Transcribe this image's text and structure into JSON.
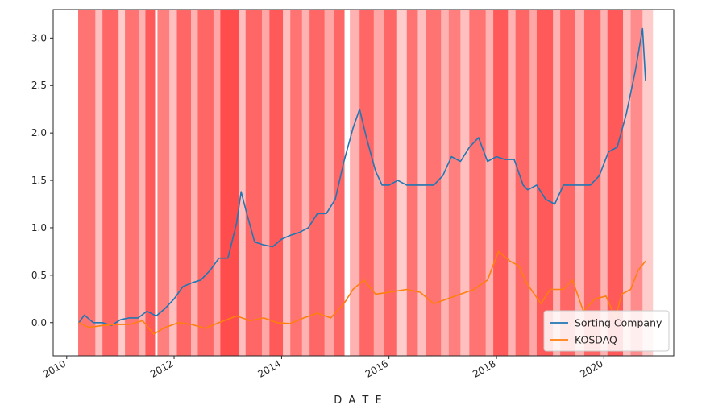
{
  "chart_data": {
    "type": "line",
    "title": "",
    "xlabel": "D A T E",
    "ylabel": "",
    "x_axis_type": "date",
    "xlim": [
      "2009-10-01",
      "2021-04-20"
    ],
    "ylim": [
      -0.35,
      3.3
    ],
    "grid": false,
    "legend_position": "bottom-right",
    "x_ticks": [
      "2010",
      "2012",
      "2014",
      "2016",
      "2018",
      "2020"
    ],
    "y_ticks": [
      "0.0",
      "0.5",
      "1.0",
      "1.5",
      "2.0",
      "2.5",
      "3.0"
    ],
    "y_tick_values": [
      0,
      0.5,
      1.0,
      1.5,
      2.0,
      2.5,
      3.0
    ],
    "background_shading": {
      "description": "vertical red bands of varying opacity",
      "color": "#ff0000",
      "bands": [
        [
          "2010-03-20",
          "2010-07-15",
          0.55
        ],
        [
          "2010-07-15",
          "2010-09-01",
          0.25
        ],
        [
          "2010-09-01",
          "2010-12-20",
          0.6
        ],
        [
          "2010-12-20",
          "2011-02-01",
          0.2
        ],
        [
          "2011-02-01",
          "2011-05-10",
          0.55
        ],
        [
          "2011-05-10",
          "2011-06-20",
          0.3
        ],
        [
          "2011-06-20",
          "2011-08-25",
          0.65
        ],
        [
          "2011-09-10",
          "2011-11-30",
          0.5
        ],
        [
          "2011-11-30",
          "2012-01-20",
          0.25
        ],
        [
          "2012-01-20",
          "2012-04-25",
          0.6
        ],
        [
          "2012-04-25",
          "2012-06-10",
          0.3
        ],
        [
          "2012-06-10",
          "2012-09-25",
          0.6
        ],
        [
          "2012-09-25",
          "2012-11-10",
          0.35
        ],
        [
          "2012-11-10",
          "2013-03-15",
          0.7
        ],
        [
          "2013-03-15",
          "2013-05-01",
          0.25
        ],
        [
          "2013-05-01",
          "2013-08-20",
          0.6
        ],
        [
          "2013-08-20",
          "2013-10-10",
          0.35
        ],
        [
          "2013-10-10",
          "2014-01-10",
          0.65
        ],
        [
          "2014-01-10",
          "2014-03-01",
          0.25
        ],
        [
          "2014-03-01",
          "2014-05-20",
          0.55
        ],
        [
          "2014-05-20",
          "2014-07-10",
          0.3
        ],
        [
          "2014-07-10",
          "2014-10-20",
          0.6
        ],
        [
          "2014-10-20",
          "2014-12-25",
          0.35
        ],
        [
          "2014-12-25",
          "2015-03-05",
          0.6
        ],
        [
          "2015-04-10",
          "2015-06-15",
          0.3
        ],
        [
          "2015-06-15",
          "2015-09-20",
          0.6
        ],
        [
          "2015-09-20",
          "2015-12-01",
          0.35
        ],
        [
          "2015-12-01",
          "2016-02-20",
          0.6
        ],
        [
          "2016-02-20",
          "2016-05-01",
          0.2
        ],
        [
          "2016-05-01",
          "2016-07-15",
          0.55
        ],
        [
          "2016-07-15",
          "2016-09-10",
          0.25
        ],
        [
          "2016-09-10",
          "2016-12-20",
          0.55
        ],
        [
          "2016-12-20",
          "2017-02-10",
          0.3
        ],
        [
          "2017-02-10",
          "2017-05-01",
          0.5
        ],
        [
          "2017-05-01",
          "2017-06-30",
          0.25
        ],
        [
          "2017-06-30",
          "2017-10-20",
          0.55
        ],
        [
          "2017-10-20",
          "2017-12-10",
          0.3
        ],
        [
          "2017-12-10",
          "2018-03-20",
          0.65
        ],
        [
          "2018-03-20",
          "2018-05-10",
          0.3
        ],
        [
          "2018-05-10",
          "2018-08-15",
          0.6
        ],
        [
          "2018-08-15",
          "2018-10-01",
          0.35
        ],
        [
          "2018-10-01",
          "2019-01-20",
          0.65
        ],
        [
          "2019-01-20",
          "2019-03-10",
          0.3
        ],
        [
          "2019-03-10",
          "2019-06-20",
          0.6
        ],
        [
          "2019-06-20",
          "2019-08-20",
          0.3
        ],
        [
          "2019-08-20",
          "2019-12-10",
          0.6
        ],
        [
          "2019-12-10",
          "2020-01-25",
          0.3
        ],
        [
          "2020-01-25",
          "2020-05-10",
          0.65
        ],
        [
          "2020-05-10",
          "2020-07-01",
          0.25
        ],
        [
          "2020-07-01",
          "2020-09-20",
          0.45
        ],
        [
          "2020-09-20",
          "2020-11-30",
          0.2
        ]
      ]
    },
    "series": [
      {
        "name": "Sorting Company",
        "color": "#1f77b4",
        "x": [
          "2010-03-25",
          "2010-05-01",
          "2010-07-01",
          "2010-09-01",
          "2010-11-01",
          "2011-01-01",
          "2011-03-01",
          "2011-05-01",
          "2011-07-01",
          "2011-09-01",
          "2011-11-01",
          "2012-01-01",
          "2012-03-01",
          "2012-05-01",
          "2012-07-01",
          "2012-09-01",
          "2012-11-01",
          "2013-01-01",
          "2013-03-01",
          "2013-04-01",
          "2013-05-01",
          "2013-07-01",
          "2013-09-01",
          "2013-11-01",
          "2014-01-01",
          "2014-03-01",
          "2014-05-01",
          "2014-07-01",
          "2014-09-01",
          "2014-11-01",
          "2015-01-01",
          "2015-03-01",
          "2015-05-01",
          "2015-06-15",
          "2015-08-01",
          "2015-10-01",
          "2015-11-15",
          "2016-01-01",
          "2016-03-01",
          "2016-05-01",
          "2016-07-01",
          "2016-09-01",
          "2016-11-01",
          "2017-01-01",
          "2017-03-01",
          "2017-05-01",
          "2017-07-01",
          "2017-09-01",
          "2017-11-01",
          "2018-01-01",
          "2018-03-01",
          "2018-05-01",
          "2018-07-01",
          "2018-08-01",
          "2018-10-01",
          "2018-12-01",
          "2019-02-01",
          "2019-04-01",
          "2019-06-01",
          "2019-08-01",
          "2019-10-01",
          "2019-12-01",
          "2020-02-01",
          "2020-04-01",
          "2020-06-01",
          "2020-08-01",
          "2020-09-20",
          "2020-10-10"
        ],
        "values": [
          0.0,
          0.08,
          0.0,
          0.0,
          -0.03,
          0.03,
          0.05,
          0.05,
          0.12,
          0.07,
          0.15,
          0.25,
          0.38,
          0.42,
          0.45,
          0.55,
          0.68,
          0.68,
          1.05,
          1.38,
          1.2,
          0.85,
          0.82,
          0.8,
          0.88,
          0.92,
          0.95,
          1.0,
          1.15,
          1.15,
          1.3,
          1.7,
          2.05,
          2.25,
          1.95,
          1.6,
          1.45,
          1.45,
          1.5,
          1.45,
          1.45,
          1.45,
          1.45,
          1.55,
          1.75,
          1.7,
          1.85,
          1.95,
          1.7,
          1.75,
          1.72,
          1.72,
          1.45,
          1.4,
          1.45,
          1.3,
          1.25,
          1.45,
          1.45,
          1.45,
          1.45,
          1.55,
          1.8,
          1.85,
          2.2,
          2.65,
          3.1,
          2.55
        ]
      },
      {
        "name": "KOSDAQ",
        "color": "#ff7f0e",
        "x": [
          "2010-03-25",
          "2010-06-01",
          "2010-09-01",
          "2010-12-01",
          "2011-03-01",
          "2011-06-01",
          "2011-08-15",
          "2011-11-01",
          "2012-02-01",
          "2012-05-01",
          "2012-08-01",
          "2012-11-01",
          "2013-03-01",
          "2013-06-01",
          "2013-09-01",
          "2013-12-01",
          "2014-03-01",
          "2014-06-01",
          "2014-09-01",
          "2014-12-01",
          "2015-03-01",
          "2015-05-01",
          "2015-07-15",
          "2015-10-01",
          "2016-01-01",
          "2016-05-01",
          "2016-08-01",
          "2016-11-01",
          "2017-02-01",
          "2017-05-01",
          "2017-08-01",
          "2017-11-01",
          "2018-01-15",
          "2018-04-01",
          "2018-06-01",
          "2018-08-01",
          "2018-10-30",
          "2019-01-01",
          "2019-04-01",
          "2019-06-01",
          "2019-08-15",
          "2019-11-01",
          "2020-01-15",
          "2020-03-20",
          "2020-05-01",
          "2020-07-01",
          "2020-08-20",
          "2020-10-10"
        ],
        "values": [
          0.0,
          -0.05,
          -0.03,
          -0.02,
          -0.02,
          0.02,
          -0.12,
          -0.05,
          0.0,
          -0.02,
          -0.06,
          0.0,
          0.07,
          0.02,
          0.05,
          0.0,
          -0.01,
          0.05,
          0.1,
          0.05,
          0.2,
          0.35,
          0.45,
          0.3,
          0.32,
          0.35,
          0.32,
          0.2,
          0.25,
          0.3,
          0.35,
          0.45,
          0.75,
          0.65,
          0.6,
          0.4,
          0.2,
          0.35,
          0.35,
          0.45,
          0.12,
          0.25,
          0.28,
          0.05,
          0.3,
          0.35,
          0.55,
          0.65
        ]
      }
    ]
  }
}
